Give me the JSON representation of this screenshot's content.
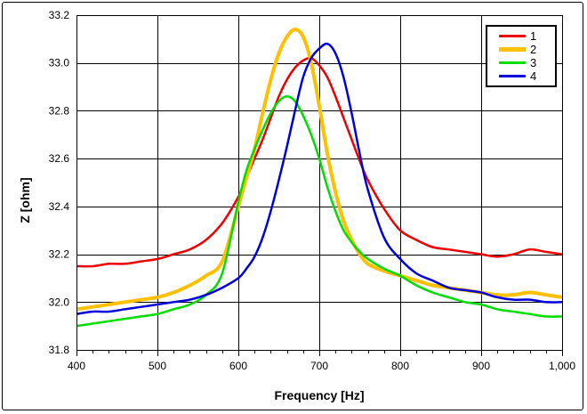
{
  "window": {
    "background": "#ffffff",
    "frame_color": "#000000"
  },
  "chart_data": {
    "type": "line",
    "title": "",
    "xlabel": "Frequency [Hz]",
    "ylabel": "Z [ohm]",
    "xlim": [
      400,
      1000
    ],
    "ylim": [
      31.8,
      33.2
    ],
    "grid": true,
    "grid_color": "#000000",
    "x_major_ticks": [
      400,
      500,
      600,
      700,
      800,
      900,
      1000
    ],
    "x_tick_labels": [
      "400",
      "500",
      "600",
      "700",
      "800",
      "900",
      "1,000"
    ],
    "x_minor_tick_step": 20,
    "y_major_tick_step": 0.2,
    "y_tick_labels": [
      "31.8",
      "32.0",
      "32.2",
      "32.4",
      "32.6",
      "32.8",
      "33.0",
      "33.2"
    ],
    "legend_position": "top-right",
    "x": [
      400,
      420,
      440,
      460,
      480,
      500,
      520,
      540,
      560,
      580,
      600,
      610,
      620,
      630,
      640,
      650,
      660,
      670,
      680,
      690,
      700,
      710,
      720,
      730,
      740,
      750,
      760,
      780,
      800,
      820,
      840,
      860,
      880,
      900,
      920,
      940,
      960,
      980,
      1000
    ],
    "series": [
      {
        "name": "1",
        "color": "#ee0000",
        "line_width": 2.5,
        "values": [
          32.15,
          32.15,
          32.16,
          32.16,
          32.17,
          32.18,
          32.2,
          32.22,
          32.26,
          32.33,
          32.44,
          32.52,
          32.6,
          32.68,
          32.77,
          32.86,
          32.93,
          32.98,
          33.01,
          33.02,
          32.99,
          32.94,
          32.86,
          32.77,
          32.68,
          32.59,
          32.51,
          32.39,
          32.3,
          32.26,
          32.23,
          32.22,
          32.21,
          32.2,
          32.19,
          32.2,
          32.22,
          32.21,
          32.2
        ]
      },
      {
        "name": "2",
        "color": "#ffc000",
        "line_width": 4,
        "values": [
          31.97,
          31.98,
          31.99,
          32.0,
          32.01,
          32.02,
          32.04,
          32.07,
          32.11,
          32.17,
          32.4,
          32.52,
          32.64,
          32.79,
          32.93,
          33.04,
          33.11,
          33.14,
          33.11,
          33.0,
          32.82,
          32.62,
          32.46,
          32.34,
          32.26,
          32.2,
          32.16,
          32.13,
          32.11,
          32.09,
          32.07,
          32.06,
          32.05,
          32.04,
          32.03,
          32.03,
          32.04,
          32.03,
          32.02
        ]
      },
      {
        "name": "3",
        "color": "#00dd00",
        "line_width": 2.5,
        "values": [
          31.9,
          31.91,
          31.92,
          31.93,
          31.94,
          31.95,
          31.97,
          31.99,
          32.03,
          32.12,
          32.42,
          32.55,
          32.64,
          32.72,
          32.79,
          32.84,
          32.86,
          32.84,
          32.78,
          32.7,
          32.6,
          32.48,
          32.38,
          32.3,
          32.25,
          32.21,
          32.18,
          32.14,
          32.11,
          32.07,
          32.04,
          32.02,
          32.0,
          31.99,
          31.97,
          31.96,
          31.95,
          31.94,
          31.94
        ]
      },
      {
        "name": "4",
        "color": "#0000dd",
        "line_width": 2.5,
        "values": [
          31.95,
          31.96,
          31.96,
          31.97,
          31.98,
          31.99,
          32.0,
          32.01,
          32.03,
          32.06,
          32.1,
          32.14,
          32.19,
          32.27,
          32.38,
          32.51,
          32.65,
          32.8,
          32.94,
          33.02,
          33.06,
          33.08,
          33.04,
          32.94,
          32.79,
          32.62,
          32.47,
          32.27,
          32.18,
          32.12,
          32.09,
          32.06,
          32.05,
          32.04,
          32.02,
          32.01,
          32.01,
          32.0,
          32.0
        ]
      }
    ]
  }
}
